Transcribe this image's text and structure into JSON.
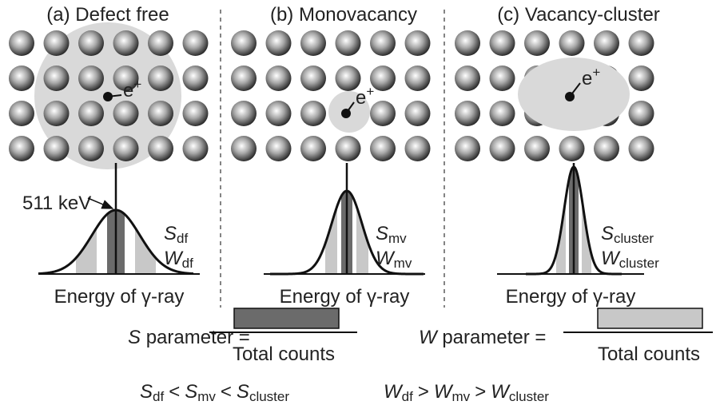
{
  "panels": [
    {
      "title": "(a) Defect free",
      "particle": {
        "symbol": "e",
        "charge": "+"
      },
      "parameters": [
        {
          "symbol": "S",
          "subscript": "df"
        },
        {
          "symbol": "W",
          "subscript": "df"
        }
      ],
      "annotation": "511 keV",
      "axis_label": "Energy of γ-ray"
    },
    {
      "title": "(b) Monovacancy",
      "particle": {
        "symbol": "e",
        "charge": "+"
      },
      "parameters": [
        {
          "symbol": "S",
          "subscript": "mv"
        },
        {
          "symbol": "W",
          "subscript": "mv"
        }
      ],
      "axis_label": "Energy of γ-ray"
    },
    {
      "title": "(c) Vacancy-cluster",
      "particle": {
        "symbol": "e",
        "charge": "+"
      },
      "parameters": [
        {
          "symbol": "S",
          "subscript": "cluster"
        },
        {
          "symbol": "W",
          "subscript": "cluster"
        }
      ],
      "axis_label": "Energy of γ-ray"
    }
  ],
  "formulas": [
    {
      "symbol": "S",
      "text": "parameter =",
      "denominator": "Total counts"
    },
    {
      "symbol": "W",
      "text": "parameter =",
      "denominator": "Total counts"
    }
  ],
  "relations": [
    {
      "terms": [
        {
          "symbol": "S",
          "subscript": "df"
        },
        {
          "symbol": "S",
          "subscript": "mv"
        },
        {
          "symbol": "S",
          "subscript": "cluster"
        }
      ],
      "operators": [
        "<",
        "<"
      ]
    },
    {
      "terms": [
        {
          "symbol": "W",
          "subscript": "df"
        },
        {
          "symbol": "W",
          "subscript": "mv"
        },
        {
          "symbol": "W",
          "subscript": "cluster"
        }
      ],
      "operators": [
        ">",
        ">"
      ]
    }
  ]
}
